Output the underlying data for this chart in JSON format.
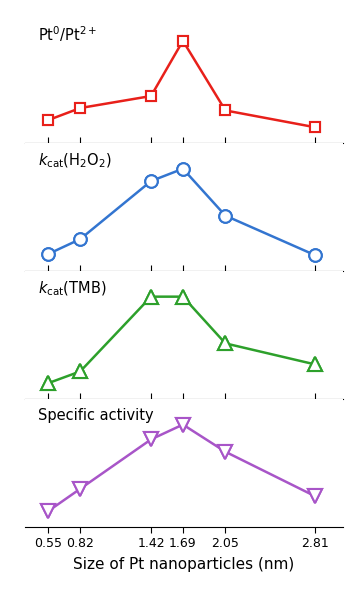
{
  "x": [
    0.55,
    0.82,
    1.42,
    1.69,
    2.05,
    2.81
  ],
  "pt_ratio": [
    0.22,
    0.32,
    0.42,
    0.88,
    0.3,
    0.16
  ],
  "kcat_h2o2": [
    0.13,
    0.25,
    0.72,
    0.82,
    0.44,
    0.12
  ],
  "kcat_tmb": [
    0.16,
    0.26,
    0.9,
    0.9,
    0.5,
    0.32
  ],
  "specific": [
    0.08,
    0.26,
    0.66,
    0.78,
    0.56,
    0.2
  ],
  "colors": {
    "pt_ratio": "#e8201a",
    "kcat_h2o2": "#3375d0",
    "kcat_tmb": "#2da02b",
    "specific": "#a855c8"
  },
  "xlabel": "Size of Pt nanoparticles (nm)",
  "xticks": [
    0.55,
    0.82,
    1.42,
    1.69,
    2.05,
    2.81
  ],
  "xtick_labels": [
    "0.55",
    "0.82",
    "1.42",
    "1.69",
    "2.05",
    "2.81"
  ],
  "panel_labels": [
    "Pt$^0$/Pt$^{2+}$",
    "$k_{\\rm cat}$(H$_2$O$_2$)",
    "$k_{\\rm cat}$(TMB)",
    "Specific activity"
  ],
  "series_keys": [
    "pt_ratio",
    "kcat_h2o2",
    "kcat_tmb",
    "specific"
  ],
  "markers": [
    "s",
    "o",
    "^",
    "v"
  ],
  "marker_sizes": [
    7,
    9,
    10,
    10
  ],
  "linewidth": 1.8,
  "label_fontsize": 10.5,
  "tick_fontsize": 9.0,
  "xlabel_fontsize": 11.0
}
